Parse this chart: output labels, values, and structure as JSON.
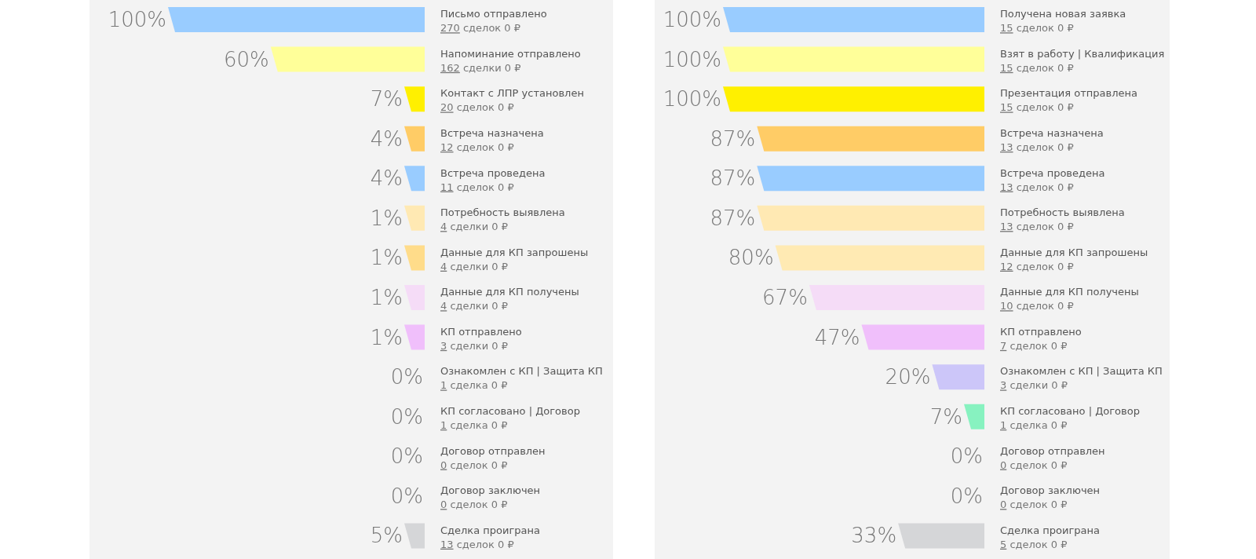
{
  "chart_data": [
    {
      "type": "other",
      "categories": [
        "Письмо отправлено",
        "Напоминание отправлено",
        "Контакт с ЛПР установлен",
        "Встреча назначена",
        "Встреча проведена",
        "Потребность выявлена",
        "Данные для КП запрошены",
        "Данные для КП получены",
        "КП отправлено",
        "Ознакомлен с КП | Защита КП",
        "КП согласовано | Договор",
        "Договор отправлен",
        "Договор заключен",
        "Сделка проиграна"
      ],
      "values": [
        100,
        60,
        7,
        4,
        4,
        1,
        1,
        1,
        1,
        0,
        0,
        0,
        0,
        5
      ],
      "value_labels": [
        "100%",
        "60%",
        "7%",
        "4%",
        "4%",
        "1%",
        "1%",
        "1%",
        "1%",
        "0%",
        "0%",
        "0%",
        "0%",
        "5%"
      ],
      "colors": [
        "#99ccff",
        "#ffff99",
        "#fff000",
        "#ffcc66",
        "#99ccff",
        "#ffe9b3",
        "#ffdc8a",
        "#f5dcf7",
        "#f0bffb",
        "#ccc6f9",
        "#87f2c0",
        "#ff8f8f",
        "#ccff66",
        "#d5d6d8"
      ],
      "annotations": [
        "270 сделок 0 ₽",
        "162 сделки 0 ₽",
        "20 сделок 0 ₽",
        "12 сделок 0 ₽",
        "11 сделок 0 ₽",
        "4 сделки 0 ₽",
        "4 сделки 0 ₽",
        "4 сделки 0 ₽",
        "3 сделки 0 ₽",
        "1 сделка 0 ₽",
        "1 сделка 0 ₽",
        "0 сделок 0 ₽",
        "0 сделок 0 ₽",
        "13 сделок 0 ₽"
      ]
    },
    {
      "type": "other",
      "categories": [
        "Получена новая заявка",
        "Взят в работу | Квалификация",
        "Презентация отправлена",
        "Встреча назначена",
        "Встреча проведена",
        "Потребность выявлена",
        "Данные для КП запрошены",
        "Данные для КП получены",
        "КП отправлено",
        "Ознакомлен с КП | Защита КП",
        "КП согласовано | Договор",
        "Договор отправлен",
        "Договор заключен",
        "Сделка проиграна"
      ],
      "values": [
        100,
        100,
        100,
        87,
        87,
        87,
        80,
        67,
        47,
        20,
        7,
        0,
        0,
        33
      ],
      "value_labels": [
        "100%",
        "100%",
        "100%",
        "87%",
        "87%",
        "87%",
        "80%",
        "67%",
        "47%",
        "20%",
        "7%",
        "0%",
        "0%",
        "33%"
      ],
      "colors": [
        "#99ccff",
        "#ffff99",
        "#fff000",
        "#ffcc66",
        "#99ccff",
        "#ffe9b3",
        "#ffeab3",
        "#f5dcf7",
        "#f0bffb",
        "#ccc6f9",
        "#87f2c0",
        "#ff8f8f",
        "#ccff66",
        "#d5d6d8"
      ],
      "annotations": [
        "15 сделок 0 ₽",
        "15 сделок 0 ₽",
        "15 сделок 0 ₽",
        "13 сделок 0 ₽",
        "13 сделок 0 ₽",
        "13 сделок 0 ₽",
        "12 сделок 0 ₽",
        "10 сделок 0 ₽",
        "7 сделок 0 ₽",
        "3 сделки 0 ₽",
        "1 сделка 0 ₽",
        "0 сделок 0 ₽",
        "0 сделок 0 ₽",
        "5 сделок 0 ₽"
      ]
    }
  ]
}
